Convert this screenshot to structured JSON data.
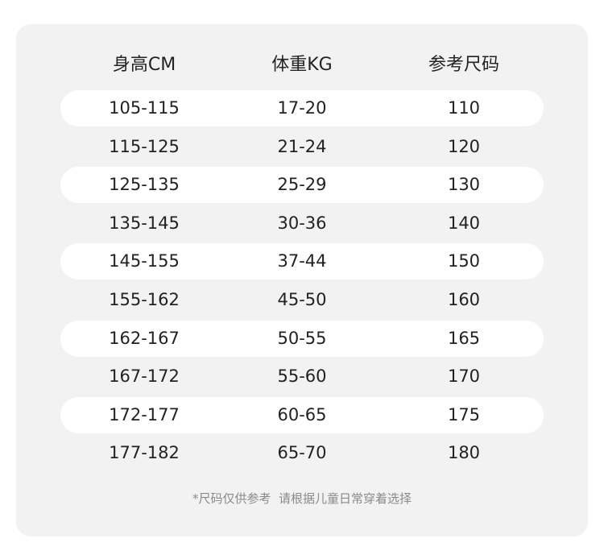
{
  "columns": [
    "身高CM",
    "体重KG",
    "参考尺码"
  ],
  "rows": [
    [
      "105-115",
      "17-20",
      "110"
    ],
    [
      "115-125",
      "21-24",
      "120"
    ],
    [
      "125-135",
      "25-29",
      "130"
    ],
    [
      "135-145",
      "30-36",
      "140"
    ],
    [
      "145-155",
      "37-44",
      "150"
    ],
    [
      "155-162",
      "45-50",
      "160"
    ],
    [
      "162-167",
      "50-55",
      "165"
    ],
    [
      "167-172",
      "55-60",
      "170"
    ],
    [
      "172-177",
      "60-65",
      "175"
    ],
    [
      "177-182",
      "65-70",
      "180"
    ]
  ],
  "footnote": "*尺码仅供参考  请根据儿童日常穿着选择",
  "colors": {
    "panel": "#f2f2f2",
    "stripe": "#ffffff",
    "text": "#222222",
    "footnote": "#8a8a8a"
  }
}
